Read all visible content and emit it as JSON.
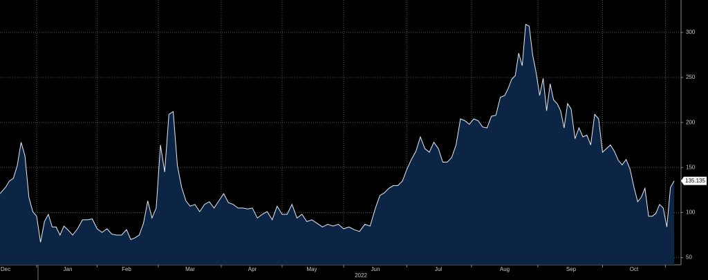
{
  "chart_data": {
    "type": "area",
    "year_label": "2022",
    "categories": [
      null,
      "Dec",
      null,
      null,
      null,
      null,
      null,
      null,
      null,
      null,
      null,
      null,
      null,
      null,
      null,
      null,
      null,
      "Jan",
      null,
      null,
      null,
      null,
      null,
      null,
      null,
      null,
      null,
      null,
      null,
      "Feb",
      null,
      null,
      null,
      null,
      null,
      null,
      null,
      null,
      null,
      null,
      null,
      null,
      null,
      null,
      "Mar",
      null,
      null,
      null,
      null,
      null,
      null,
      null,
      null,
      null,
      null,
      null,
      null,
      "Apr",
      null,
      null,
      null,
      null,
      null,
      null,
      null,
      null,
      null,
      null,
      null,
      "May",
      null,
      null,
      null,
      null,
      null,
      null,
      null,
      null,
      null,
      null,
      null,
      "Jun",
      null,
      null,
      null,
      null,
      null,
      null,
      null,
      null,
      null,
      null,
      null,
      null,
      null,
      "Jul",
      null,
      null,
      null,
      null,
      null,
      null,
      null,
      null,
      null,
      null,
      null,
      null,
      null,
      null,
      "Aug",
      null,
      null,
      null,
      null,
      null,
      null,
      null,
      null,
      null,
      null,
      null,
      null,
      null,
      null,
      null,
      null,
      null,
      null,
      "Sep",
      null,
      null,
      null,
      null,
      null,
      null,
      null,
      null,
      null,
      null,
      null,
      null,
      null,
      null,
      null,
      "Oct",
      null,
      null,
      null,
      null,
      null,
      null,
      null,
      null,
      null,
      null,
      null
    ],
    "series": [
      {
        "color": "#e8edf2",
        "fill": "#0d2545",
        "values": [
          121,
          128,
          135,
          138,
          152,
          178,
          163,
          117,
          101,
          96,
          67,
          90,
          98,
          84,
          84,
          75,
          85,
          81,
          75,
          82,
          92,
          92,
          93,
          82,
          78,
          82,
          76,
          75,
          75,
          81,
          70,
          72,
          75,
          88,
          113,
          94,
          105,
          175,
          145,
          209,
          212,
          152,
          128,
          113,
          107,
          109,
          101,
          109,
          112,
          105,
          113,
          121,
          111,
          109,
          105,
          105,
          104,
          105,
          94,
          98,
          101,
          92,
          107,
          98,
          98,
          109,
          94,
          98,
          90,
          92,
          88,
          84,
          87,
          85,
          87,
          82,
          84,
          81,
          79,
          87,
          85,
          105,
          119,
          122,
          127,
          130,
          130,
          135,
          148,
          159,
          168,
          184,
          171,
          167,
          178,
          171,
          156,
          156,
          161,
          175,
          204,
          202,
          198,
          204,
          202,
          195,
          194,
          207,
          208,
          228,
          230,
          238,
          248,
          252,
          277,
          263,
          309,
          307,
          275,
          255,
          230,
          249,
          213,
          243,
          225,
          221,
          213,
          194,
          221,
          215,
          182,
          194,
          184,
          186,
          175,
          209,
          204,
          167,
          171,
          175,
          168,
          158,
          153,
          159,
          148,
          128,
          112,
          117,
          127,
          96,
          96,
          99,
          109,
          105,
          84,
          128,
          135.135
        ]
      }
    ],
    "ylim": [
      42,
      336
    ],
    "yticks": [
      50,
      100,
      150,
      200,
      250,
      300
    ],
    "grid": true
  }
}
